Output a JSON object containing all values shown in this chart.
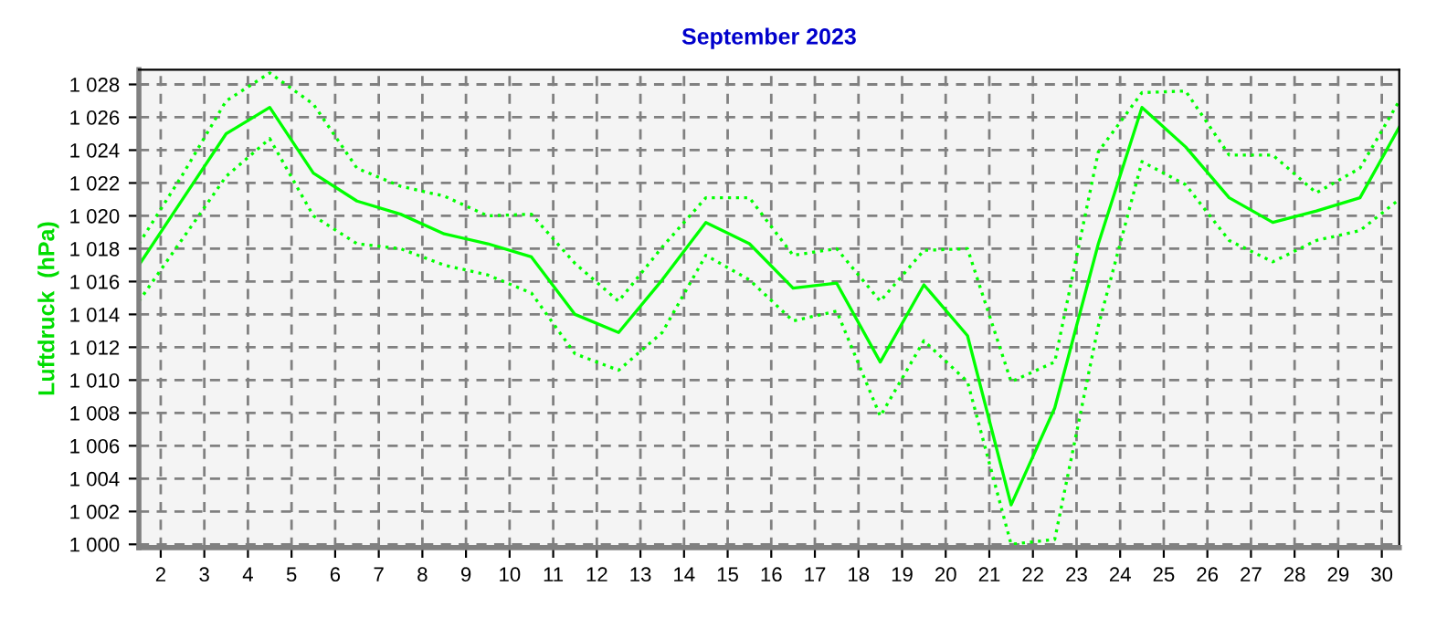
{
  "chart_data": {
    "type": "line",
    "title": "September 2023",
    "ylabel": "Luftdruck  (hPa)",
    "x": [
      1.5,
      2.5,
      3.5,
      4.5,
      5.5,
      6.5,
      7.5,
      8.5,
      9.5,
      10.5,
      11.5,
      12.5,
      13.5,
      14.5,
      15.5,
      16.5,
      17.5,
      18.5,
      19.5,
      20.5,
      21.5,
      22.5,
      23.5,
      24.5,
      25.5,
      26.5,
      27.5,
      28.5,
      29.5,
      30.4
    ],
    "series": [
      {
        "color": "#00ff00",
        "line_style": "dotted",
        "values": [
          1018.3,
          1022.5,
          1027.0,
          1028.7,
          1026.8,
          1022.9,
          1021.8,
          1021.2,
          1020.0,
          1020.1,
          1017.1,
          1014.8,
          1018.1,
          1021.1,
          1021.1,
          1017.6,
          1018.0,
          1014.8,
          1017.9,
          1018.0,
          1009.9,
          1011.1,
          1023.9,
          1027.5,
          1027.6,
          1023.7,
          1023.7,
          1021.4,
          1022.9,
          1027.0
        ]
      },
      {
        "color": "#00ff00",
        "line_style": "solid",
        "values": [
          1017.0,
          1021.0,
          1025.0,
          1026.6,
          1022.6,
          1020.9,
          1020.1,
          1018.9,
          1018.3,
          1017.5,
          1014.0,
          1012.9,
          1016.1,
          1019.6,
          1018.3,
          1015.6,
          1015.9,
          1011.1,
          1015.8,
          1012.7,
          1002.4,
          1008.3,
          1018.3,
          1026.6,
          1024.2,
          1021.1,
          1019.6,
          1020.3,
          1021.1,
          1025.4
        ]
      },
      {
        "color": "#00ff00",
        "line_style": "dotted",
        "values": [
          1014.8,
          1018.6,
          1022.4,
          1024.7,
          1020.0,
          1018.3,
          1018.0,
          1017.0,
          1016.4,
          1015.3,
          1011.6,
          1010.6,
          1012.9,
          1017.6,
          1016.1,
          1013.6,
          1014.2,
          1007.8,
          1012.4,
          1009.9,
          1000.0,
          1000.3,
          1013.3,
          1023.3,
          1021.9,
          1018.5,
          1017.2,
          1018.5,
          1019.1,
          1021.0
        ]
      }
    ],
    "xlim": [
      1.5,
      30.4
    ],
    "ylim": [
      999.8,
      1028.9
    ],
    "xticks": [
      2,
      3,
      4,
      5,
      6,
      7,
      8,
      9,
      10,
      11,
      12,
      13,
      14,
      15,
      16,
      17,
      18,
      19,
      20,
      21,
      22,
      23,
      24,
      25,
      26,
      27,
      28,
      29,
      30
    ],
    "yticks": [
      {
        "value": 1000,
        "label": "1 000"
      },
      {
        "value": 1002,
        "label": "1 002"
      },
      {
        "value": 1004,
        "label": "1 004"
      },
      {
        "value": 1006,
        "label": "1 006"
      },
      {
        "value": 1008,
        "label": "1 008"
      },
      {
        "value": 1010,
        "label": "1 010"
      },
      {
        "value": 1012,
        "label": "1 012"
      },
      {
        "value": 1014,
        "label": "1 014"
      },
      {
        "value": 1016,
        "label": "1 016"
      },
      {
        "value": 1018,
        "label": "1 018"
      },
      {
        "value": 1020,
        "label": "1 020"
      },
      {
        "value": 1022,
        "label": "1 022"
      },
      {
        "value": 1024,
        "label": "1 024"
      },
      {
        "value": 1026,
        "label": "1 026"
      },
      {
        "value": 1028,
        "label": "1 028"
      }
    ],
    "grid": true
  }
}
